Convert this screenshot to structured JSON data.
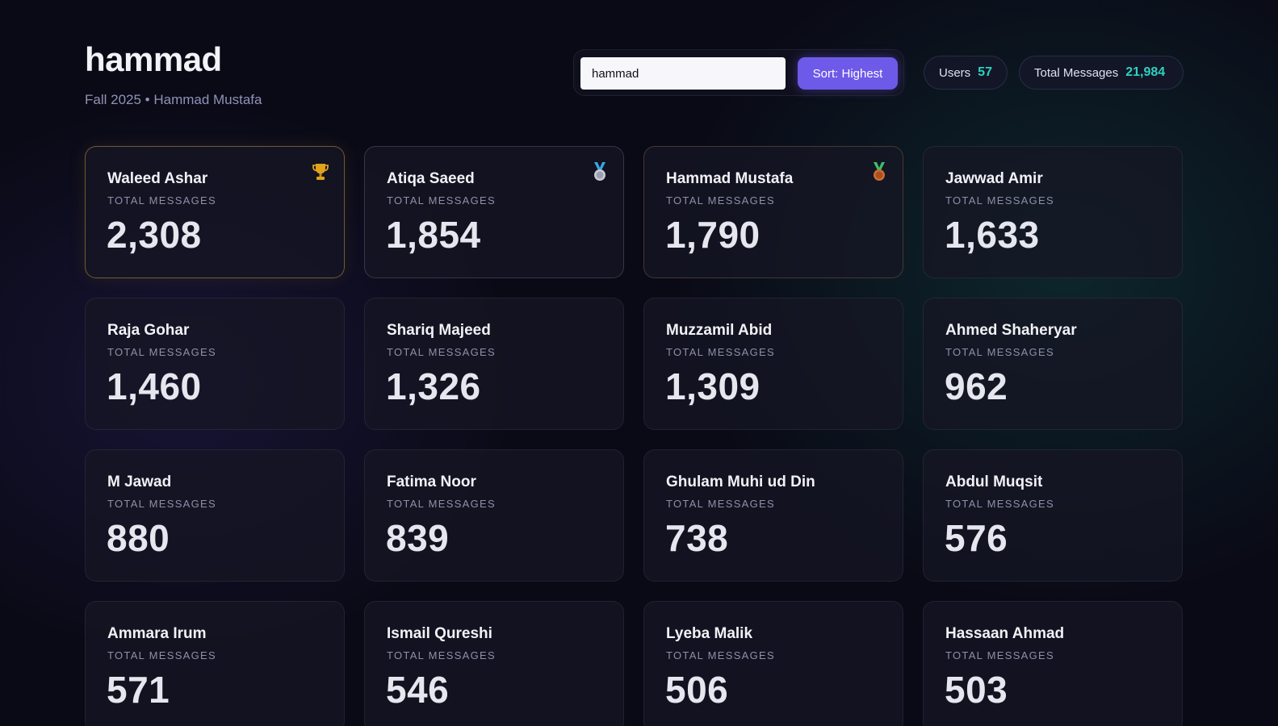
{
  "header": {
    "title": "hammad",
    "subtitle": "Fall 2025 • Hammad Mustafa"
  },
  "search": {
    "value": "hammad",
    "placeholder": "hammad"
  },
  "sort": {
    "label": "Sort: Highest"
  },
  "stats": {
    "users_label": "Users",
    "users_value": "57",
    "total_label": "Total Messages",
    "total_value": "21,984"
  },
  "colors": {
    "accent": "#6d5ae8",
    "stat_value": "#2fd1c1",
    "gold": "#e0a21b",
    "silver": "#c8cbd6",
    "bronze": "#cd6b33"
  },
  "cards": [
    {
      "name": "Waleed Ashar",
      "label": "TOTAL MESSAGES",
      "value": "2,308",
      "medal": "trophy-icon"
    },
    {
      "name": "Atiqa Saeed",
      "label": "TOTAL MESSAGES",
      "value": "1,854",
      "medal": "silver-medal-icon"
    },
    {
      "name": "Hammad Mustafa",
      "label": "TOTAL MESSAGES",
      "value": "1,790",
      "medal": "bronze-medal-icon"
    },
    {
      "name": "Jawwad Amir",
      "label": "TOTAL MESSAGES",
      "value": "1,633"
    },
    {
      "name": "Raja Gohar",
      "label": "TOTAL MESSAGES",
      "value": "1,460"
    },
    {
      "name": "Shariq Majeed",
      "label": "TOTAL MESSAGES",
      "value": "1,326"
    },
    {
      "name": "Muzzamil Abid",
      "label": "TOTAL MESSAGES",
      "value": "1,309"
    },
    {
      "name": "Ahmed Shaheryar",
      "label": "TOTAL MESSAGES",
      "value": "962"
    },
    {
      "name": "M Jawad",
      "label": "TOTAL MESSAGES",
      "value": "880"
    },
    {
      "name": "Fatima Noor",
      "label": "TOTAL MESSAGES",
      "value": "839"
    },
    {
      "name": "Ghulam Muhi ud Din",
      "label": "TOTAL MESSAGES",
      "value": "738"
    },
    {
      "name": "Abdul Muqsit",
      "label": "TOTAL MESSAGES",
      "value": "576"
    },
    {
      "name": "Ammara Irum",
      "label": "TOTAL MESSAGES",
      "value": "571"
    },
    {
      "name": "Ismail Qureshi",
      "label": "TOTAL MESSAGES",
      "value": "546"
    },
    {
      "name": "Lyeba Malik",
      "label": "TOTAL MESSAGES",
      "value": "506"
    },
    {
      "name": "Hassaan Ahmad",
      "label": "TOTAL MESSAGES",
      "value": "503"
    }
  ]
}
